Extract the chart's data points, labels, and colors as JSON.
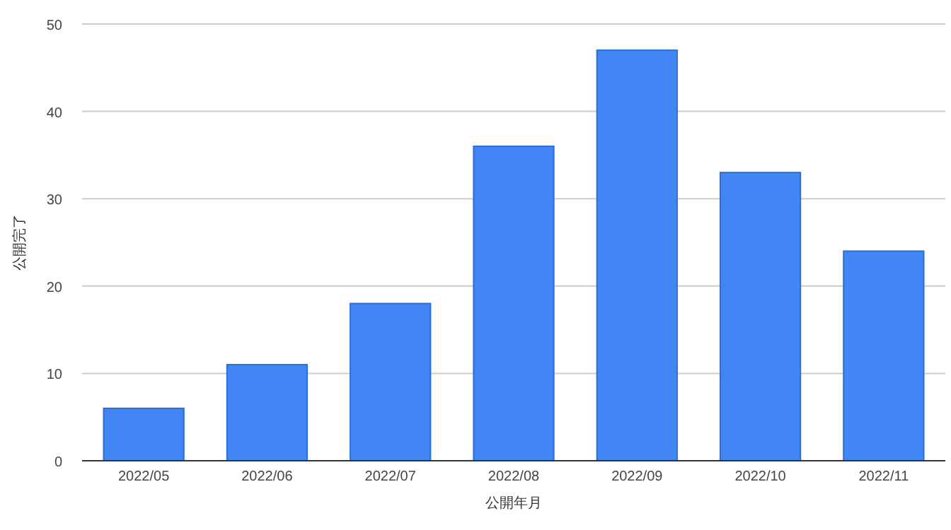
{
  "chart_data": {
    "type": "bar",
    "xlabel": "公開年月",
    "ylabel": "公開完了",
    "categories": [
      "2022/05",
      "2022/06",
      "2022/07",
      "2022/08",
      "2022/09",
      "2022/10",
      "2022/11"
    ],
    "values": [
      6,
      11,
      18,
      36,
      47,
      33,
      24
    ],
    "color": "#4285f4",
    "ylim": [
      0,
      50
    ],
    "yticks": [
      0,
      10,
      20,
      30,
      40,
      50
    ],
    "grid": "y"
  }
}
